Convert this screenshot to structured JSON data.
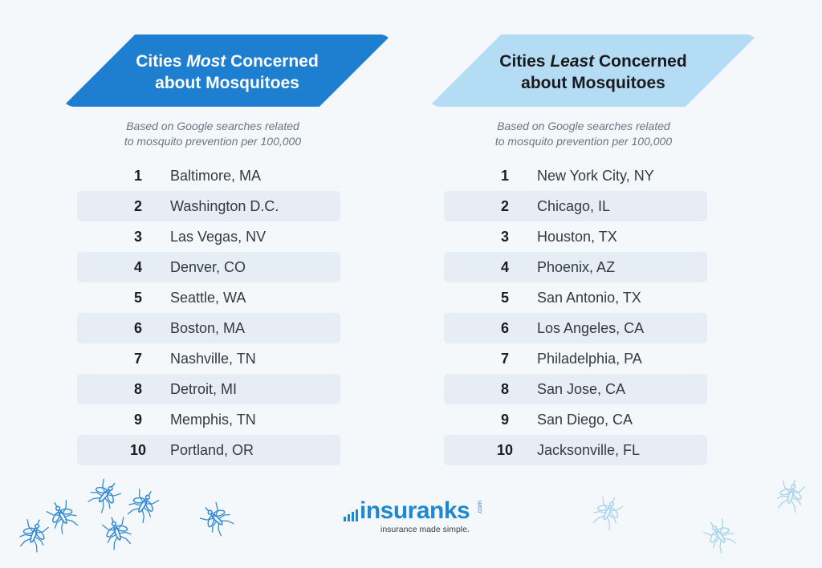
{
  "colors": {
    "background": "#f4f8fb",
    "banner_most": "#1e7fd0",
    "banner_least": "#b5dcf5",
    "row_shade": "#e6edf4",
    "brand": "#1e88d2"
  },
  "most": {
    "title_pre": "Cities ",
    "title_em": "Most",
    "title_post": " Concerned",
    "title_line2": "about Mosquitoes",
    "subtitle_line1": "Based on Google searches related",
    "subtitle_line2": "to mosquito prevention per 100,000",
    "items": [
      {
        "rank": "1",
        "city": "Baltimore, MA"
      },
      {
        "rank": "2",
        "city": "Washington D.C."
      },
      {
        "rank": "3",
        "city": "Las Vegas, NV"
      },
      {
        "rank": "4",
        "city": "Denver, CO"
      },
      {
        "rank": "5",
        "city": "Seattle, WA"
      },
      {
        "rank": "6",
        "city": "Boston, MA"
      },
      {
        "rank": "7",
        "city": "Nashville, TN"
      },
      {
        "rank": "8",
        "city": "Detroit, MI"
      },
      {
        "rank": "9",
        "city": "Memphis, TN"
      },
      {
        "rank": "10",
        "city": "Portland, OR"
      }
    ]
  },
  "least": {
    "title_pre": "Cities ",
    "title_em": "Least",
    "title_post": " Concerned",
    "title_line2": "about Mosquitoes",
    "subtitle_line1": "Based on Google searches related",
    "subtitle_line2": "to mosquito prevention per 100,000",
    "items": [
      {
        "rank": "1",
        "city": "New York City, NY"
      },
      {
        "rank": "2",
        "city": "Chicago, IL"
      },
      {
        "rank": "3",
        "city": "Houston, TX"
      },
      {
        "rank": "4",
        "city": "Phoenix, AZ"
      },
      {
        "rank": "5",
        "city": "San Antonio, TX"
      },
      {
        "rank": "6",
        "city": "Los Angeles, CA"
      },
      {
        "rank": "7",
        "city": "Philadelphia, PA"
      },
      {
        "rank": "8",
        "city": "San Jose, CA"
      },
      {
        "rank": "9",
        "city": "San Diego, CA"
      },
      {
        "rank": "10",
        "city": "Jacksonville, FL"
      }
    ]
  },
  "logo": {
    "word": "insuranks",
    "com": ".com",
    "tagline": "insurance made simple",
    "tagline_dot": "."
  },
  "decor": {
    "mosquito_icon": "mosquito-icon"
  }
}
